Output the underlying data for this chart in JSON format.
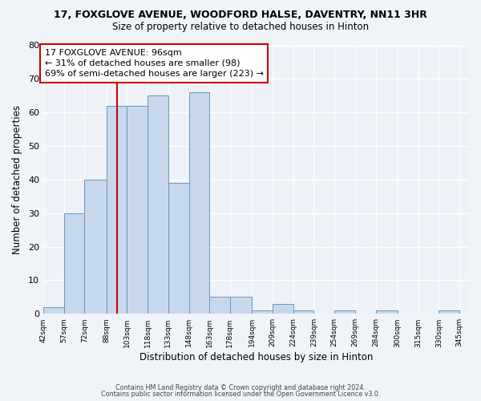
{
  "title": "17, FOXGLOVE AVENUE, WOODFORD HALSE, DAVENTRY, NN11 3HR",
  "subtitle": "Size of property relative to detached houses in Hinton",
  "xlabel": "Distribution of detached houses by size in Hinton",
  "ylabel": "Number of detached properties",
  "bar_left_edges": [
    42,
    57,
    72,
    88,
    103,
    118,
    133,
    148,
    163,
    178,
    194,
    209,
    224,
    239,
    254,
    269,
    284,
    300,
    315,
    330
  ],
  "bar_widths": [
    15,
    15,
    16,
    15,
    15,
    15,
    15,
    15,
    15,
    16,
    15,
    15,
    15,
    15,
    15,
    15,
    16,
    15,
    15,
    15
  ],
  "bar_heights": [
    2,
    30,
    40,
    62,
    62,
    65,
    39,
    66,
    5,
    5,
    1,
    3,
    1,
    0,
    1,
    0,
    1,
    0,
    0,
    1
  ],
  "bar_color": "#c8d8ec",
  "bar_edge_color": "#6699bb",
  "tick_labels": [
    "42sqm",
    "57sqm",
    "72sqm",
    "88sqm",
    "103sqm",
    "118sqm",
    "133sqm",
    "148sqm",
    "163sqm",
    "178sqm",
    "194sqm",
    "209sqm",
    "224sqm",
    "239sqm",
    "254sqm",
    "269sqm",
    "284sqm",
    "300sqm",
    "315sqm",
    "330sqm",
    "345sqm"
  ],
  "tick_positions": [
    42,
    57,
    72,
    88,
    103,
    118,
    133,
    148,
    163,
    178,
    194,
    209,
    224,
    239,
    254,
    269,
    284,
    300,
    315,
    330,
    345
  ],
  "ylim": [
    0,
    80
  ],
  "yticks": [
    0,
    10,
    20,
    30,
    40,
    50,
    60,
    70,
    80
  ],
  "xlim_left": 42,
  "xlim_right": 352,
  "property_line_x": 96,
  "property_line_color": "#cc0000",
  "annotation_line1": "17 FOXGLOVE AVENUE: 96sqm",
  "annotation_line2": "← 31% of detached houses are smaller (98)",
  "annotation_line3": "69% of semi-detached houses are larger (223) →",
  "annotation_box_color": "#cc0000",
  "annotation_text_color": "#000000",
  "background_color": "#f0f4f8",
  "plot_bg_color": "#eef2f8",
  "grid_color": "#ffffff",
  "footer_line1": "Contains HM Land Registry data © Crown copyright and database right 2024.",
  "footer_line2": "Contains public sector information licensed under the Open Government Licence v3.0."
}
